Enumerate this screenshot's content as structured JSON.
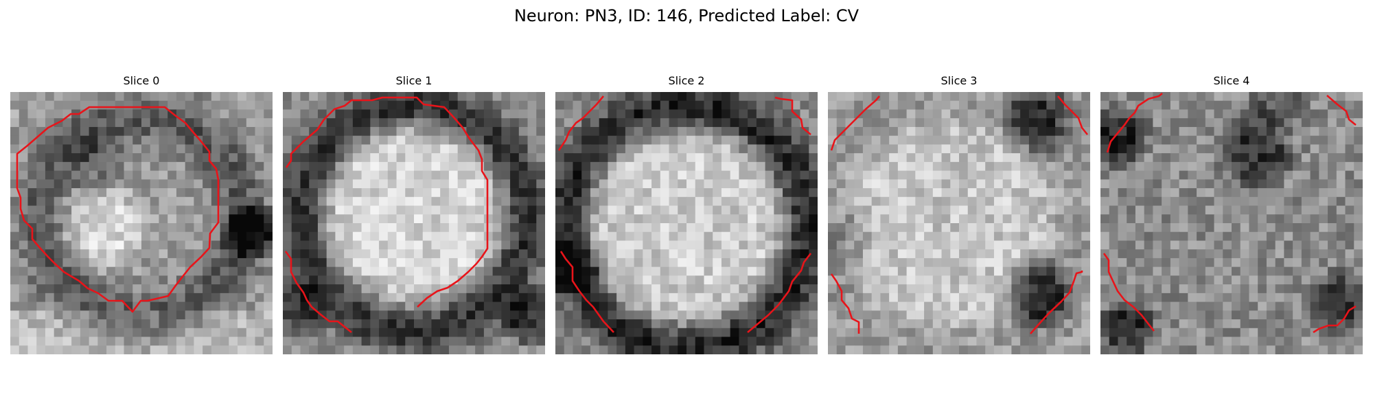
{
  "figure": {
    "title": "Neuron: PN3, ID: 146, Predicted Label: CV"
  },
  "slices": [
    {
      "title": "Slice 0"
    },
    {
      "title": "Slice 1"
    },
    {
      "title": "Slice 2"
    },
    {
      "title": "Slice 3"
    },
    {
      "title": "Slice 4"
    }
  ],
  "contour_color": "#e8141a"
}
